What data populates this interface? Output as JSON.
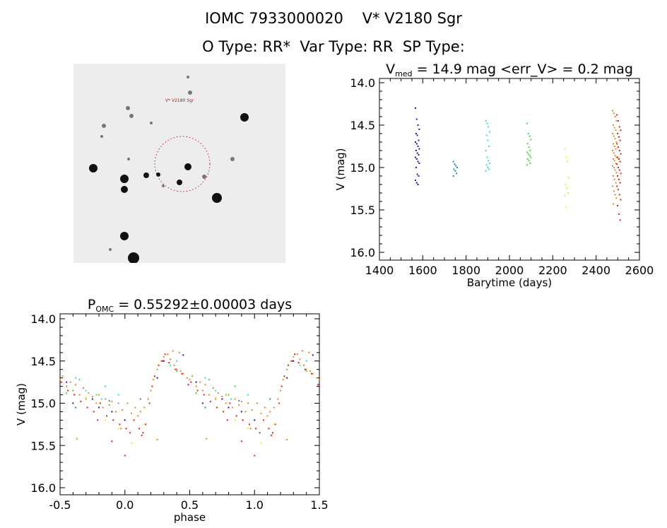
{
  "header": {
    "title": "IOMC 7933000020    V* V2180 Sgr",
    "subtitle": "O Type: RR*  Var Type: RR  SP Type:"
  },
  "sky_image": {
    "target_label": "V* V2180 Sgr",
    "circle_color": "#c02020"
  },
  "chart_data": [
    {
      "type": "scatter",
      "title_main": "V",
      "title_sub": "med",
      "title_rest": " = 14.9 mag <err_V> = 0.2 mag",
      "xlabel": "Barytime (days)",
      "ylabel": "V (mag)",
      "xlim": [
        1400,
        2600
      ],
      "ylim": [
        16.0,
        14.0
      ],
      "y_inverted": true,
      "xticks": [
        "1400",
        "1600",
        "1800",
        "2000",
        "2200",
        "2400",
        "2600"
      ],
      "yticks": [
        "14.0",
        "14.5",
        "15.0",
        "15.5",
        "16.0"
      ],
      "series": [
        {
          "x": 1575,
          "color": "#2a10a8",
          "values": [
            14.3,
            14.43,
            14.5,
            14.55,
            14.6,
            14.62,
            14.68,
            14.7,
            14.72,
            14.75,
            14.78,
            14.8,
            14.83,
            14.85,
            14.88,
            14.9,
            14.93,
            14.95,
            15.0,
            15.08,
            15.1,
            15.15,
            15.18,
            15.2
          ]
        },
        {
          "x": 1750,
          "color": "#2088c0",
          "values": [
            14.93,
            14.96,
            14.98,
            15.0,
            15.02,
            15.04,
            15.07,
            15.1
          ]
        },
        {
          "x": 1900,
          "color": "#30dcdc",
          "values": [
            14.45,
            14.48,
            14.52,
            14.58,
            14.62,
            14.68,
            14.75,
            14.8,
            14.88,
            14.92,
            14.95,
            14.97,
            15.0,
            15.02,
            15.04
          ]
        },
        {
          "x": 2090,
          "color": "#40e040",
          "values": [
            14.48,
            14.6,
            14.63,
            14.67,
            14.72,
            14.76,
            14.8,
            14.82,
            14.84,
            14.86,
            14.88,
            14.9,
            14.92,
            14.95,
            14.97
          ]
        },
        {
          "x": 2265,
          "color": "#f0f020",
          "values": [
            14.78,
            14.88,
            14.93,
            15.12,
            15.2,
            15.24,
            15.3,
            15.33,
            15.47
          ]
        },
        {
          "x": 2485,
          "color": "#e08a28",
          "values": [
            14.33,
            14.36,
            14.4,
            14.45,
            14.5,
            14.53,
            14.56,
            14.6,
            14.63,
            14.66,
            14.7,
            14.72,
            14.75,
            14.78,
            14.8,
            14.83,
            14.86,
            14.88,
            14.9,
            14.92,
            14.95,
            14.98,
            15.0,
            15.03,
            15.06,
            15.1,
            15.14,
            15.18,
            15.22,
            15.28,
            15.32,
            15.36,
            15.43
          ]
        },
        {
          "x": 2505,
          "color": "#e02010",
          "values": [
            14.38,
            14.45,
            14.52,
            14.56,
            14.6,
            14.64,
            14.68,
            14.72,
            14.76,
            14.8,
            14.84,
            14.88,
            14.9,
            14.93,
            14.96,
            15.0,
            15.03,
            15.07,
            15.1,
            15.14,
            15.18,
            15.22,
            15.26,
            15.32,
            15.38,
            15.45,
            15.55,
            15.62
          ]
        }
      ]
    },
    {
      "type": "scatter",
      "title_main": "P",
      "title_sub": "OMC",
      "title_rest": " = 0.55292±0.00003 days",
      "xlabel": "phase",
      "ylabel": "V (mag)",
      "xlim": [
        -0.5,
        1.5
      ],
      "ylim": [
        16.0,
        14.0
      ],
      "y_inverted": true,
      "phase_repeats": true,
      "xticks": [
        "-0.5",
        "0.0",
        "0.5",
        "1.0",
        "1.5"
      ],
      "yticks": [
        "14.0",
        "14.5",
        "15.0",
        "15.5",
        "16.0"
      ],
      "points": [
        {
          "c": "#e08a28",
          "p": [
            [
              0.5,
              14.72
            ],
            [
              0.52,
              14.68
            ],
            [
              0.55,
              14.8
            ],
            [
              0.58,
              14.75
            ],
            [
              0.6,
              14.85
            ],
            [
              0.62,
              14.78
            ],
            [
              0.65,
              14.9
            ],
            [
              0.68,
              14.82
            ],
            [
              0.7,
              14.95
            ],
            [
              0.72,
              14.88
            ],
            [
              0.75,
              14.92
            ],
            [
              0.78,
              15.0
            ],
            [
              0.8,
              14.9
            ],
            [
              0.83,
              15.05
            ],
            [
              0.85,
              14.95
            ],
            [
              0.88,
              15.02
            ],
            [
              0.9,
              14.98
            ],
            [
              0.93,
              15.1
            ],
            [
              0.95,
              15.0
            ],
            [
              0.98,
              15.08
            ],
            [
              0.02,
              15.0
            ],
            [
              0.05,
              15.12
            ],
            [
              0.08,
              15.05
            ],
            [
              0.1,
              15.15
            ],
            [
              0.12,
              15.1
            ],
            [
              0.15,
              15.05
            ],
            [
              0.18,
              14.95
            ],
            [
              0.2,
              14.85
            ],
            [
              0.22,
              14.72
            ],
            [
              0.25,
              14.6
            ],
            [
              0.28,
              14.5
            ],
            [
              0.3,
              14.45
            ],
            [
              0.33,
              14.42
            ],
            [
              0.35,
              14.48
            ],
            [
              0.38,
              14.55
            ],
            [
              0.4,
              14.6
            ],
            [
              0.43,
              14.62
            ],
            [
              0.45,
              14.65
            ],
            [
              0.48,
              14.7
            ],
            [
              0.63,
              15.42
            ],
            [
              0.25,
              15.43
            ],
            [
              0.97,
              15.3
            ],
            [
              0.42,
              14.4
            ],
            [
              0.37,
              14.38
            ]
          ]
        },
        {
          "c": "#e02010",
          "p": [
            [
              0.51,
              14.75
            ],
            [
              0.56,
              14.85
            ],
            [
              0.61,
              14.9
            ],
            [
              0.66,
              14.98
            ],
            [
              0.71,
              15.05
            ],
            [
              0.76,
              15.1
            ],
            [
              0.81,
              15.0
            ],
            [
              0.86,
              15.15
            ],
            [
              0.91,
              15.2
            ],
            [
              0.96,
              15.25
            ],
            [
              0.01,
              15.3
            ],
            [
              0.04,
              15.35
            ],
            [
              0.07,
              15.2
            ],
            [
              0.11,
              15.3
            ],
            [
              0.14,
              15.35
            ],
            [
              0.16,
              15.25
            ],
            [
              0.19,
              15.0
            ],
            [
              0.21,
              14.8
            ],
            [
              0.23,
              14.68
            ],
            [
              0.26,
              14.55
            ],
            [
              0.29,
              14.5
            ],
            [
              0.34,
              14.52
            ],
            [
              0.39,
              14.6
            ],
            [
              0.44,
              14.65
            ],
            [
              0.49,
              14.78
            ],
            [
              0.0,
              15.62
            ],
            [
              0.9,
              15.45
            ],
            [
              0.13,
              15.38
            ],
            [
              0.31,
              14.42
            ],
            [
              0.79,
              15.2
            ]
          ]
        },
        {
          "c": "#2a10a8",
          "p": [
            [
              0.3,
              14.5
            ],
            [
              0.45,
              14.43
            ],
            [
              0.55,
              14.75
            ],
            [
              0.75,
              14.95
            ],
            [
              0.8,
              15.05
            ],
            [
              0.9,
              15.1
            ],
            [
              0.0,
              15.2
            ],
            [
              0.25,
              14.7
            ],
            [
              0.6,
              15.0
            ]
          ]
        },
        {
          "c": "#2088c0",
          "p": [
            [
              0.12,
              14.95
            ],
            [
              0.62,
              15.05
            ],
            [
              0.88,
              14.97
            ]
          ]
        },
        {
          "c": "#30dcdc",
          "p": [
            [
              0.35,
              14.55
            ],
            [
              0.62,
              14.7
            ],
            [
              0.82,
              14.95
            ],
            [
              0.95,
              14.9
            ],
            [
              0.4,
              14.5
            ],
            [
              0.7,
              14.85
            ]
          ]
        },
        {
          "c": "#40e040",
          "p": [
            [
              0.4,
              14.62
            ],
            [
              0.65,
              14.72
            ],
            [
              0.85,
              14.8
            ],
            [
              0.55,
              14.88
            ],
            [
              0.78,
              14.9
            ]
          ]
        },
        {
          "c": "#f0f020",
          "p": [
            [
              0.05,
              15.47
            ],
            [
              0.95,
              15.3
            ],
            [
              0.85,
              15.2
            ],
            [
              0.15,
              15.25
            ],
            [
              0.7,
              14.93
            ]
          ]
        }
      ]
    }
  ]
}
